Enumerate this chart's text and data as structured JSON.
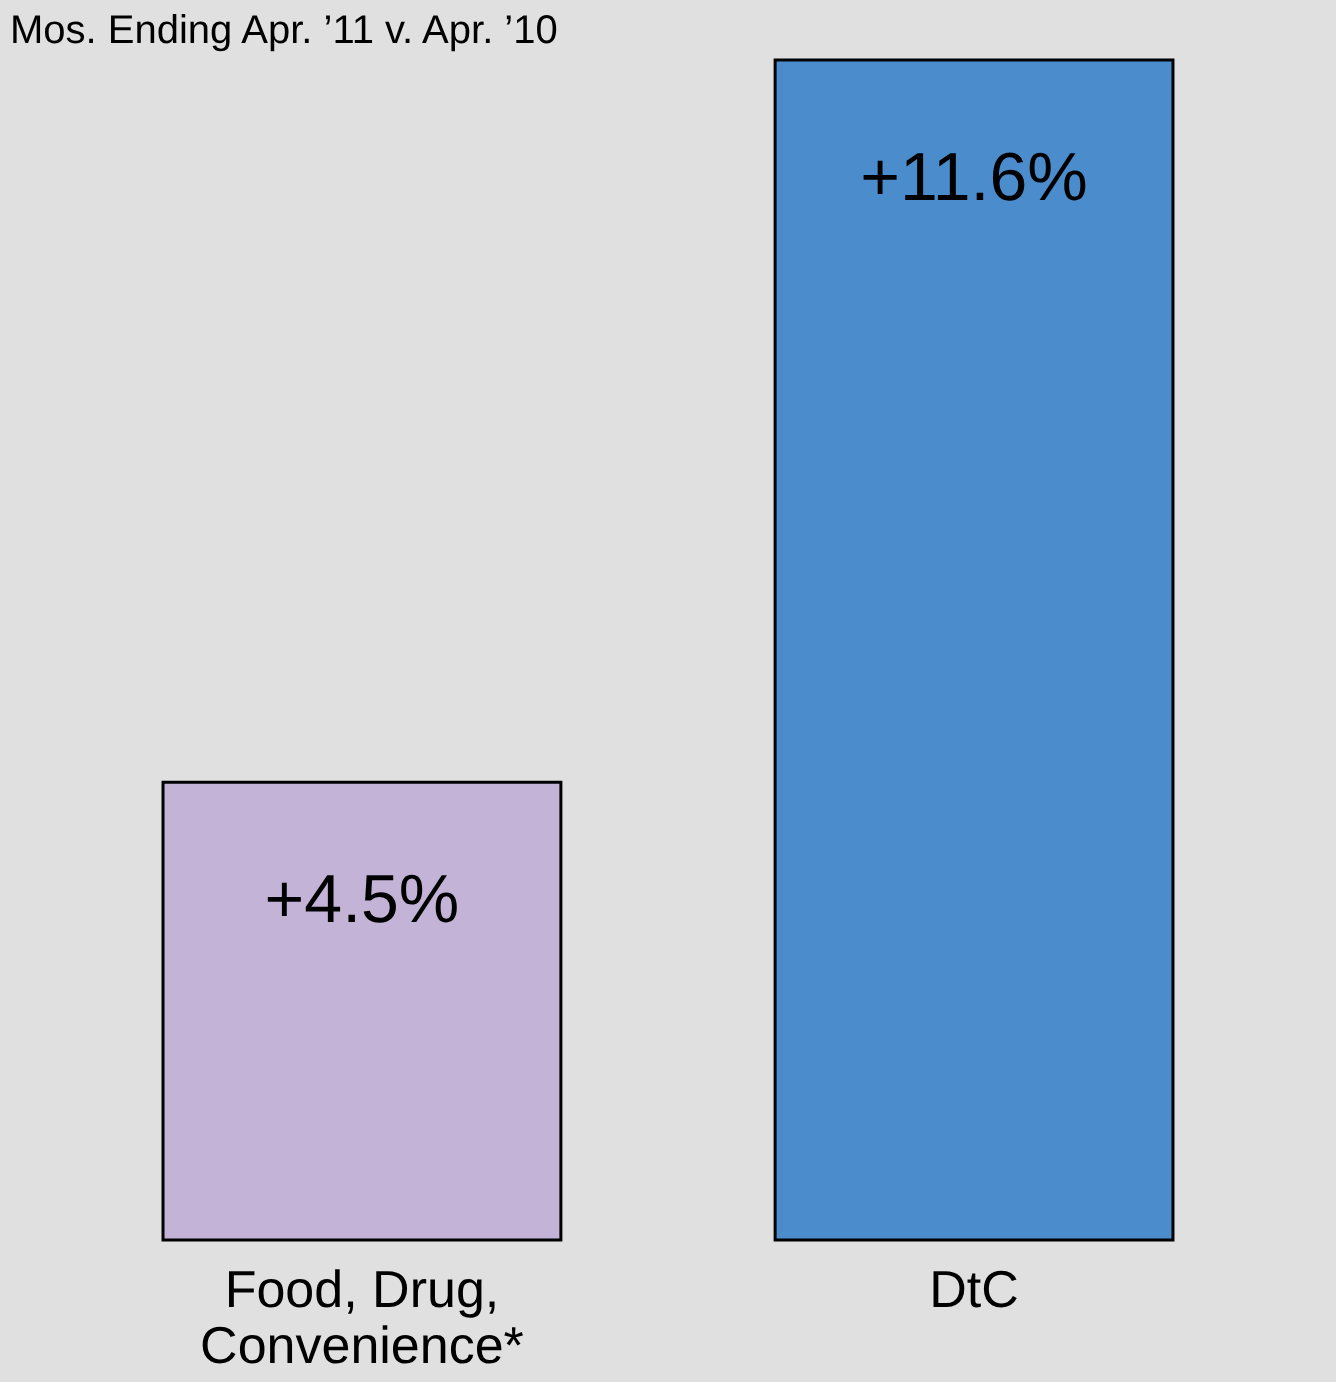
{
  "chart_data": {
    "type": "bar",
    "title": "Mos. Ending Apr. ’11 v. Apr. ’10",
    "categories": [
      "Food, Drug, Convenience*",
      "DtC"
    ],
    "values": [
      4.5,
      11.6
    ],
    "colors": [
      "#c3b3d6",
      "#4a8ccc"
    ],
    "value_labels": [
      "+4.5%",
      "+11.6%"
    ]
  }
}
